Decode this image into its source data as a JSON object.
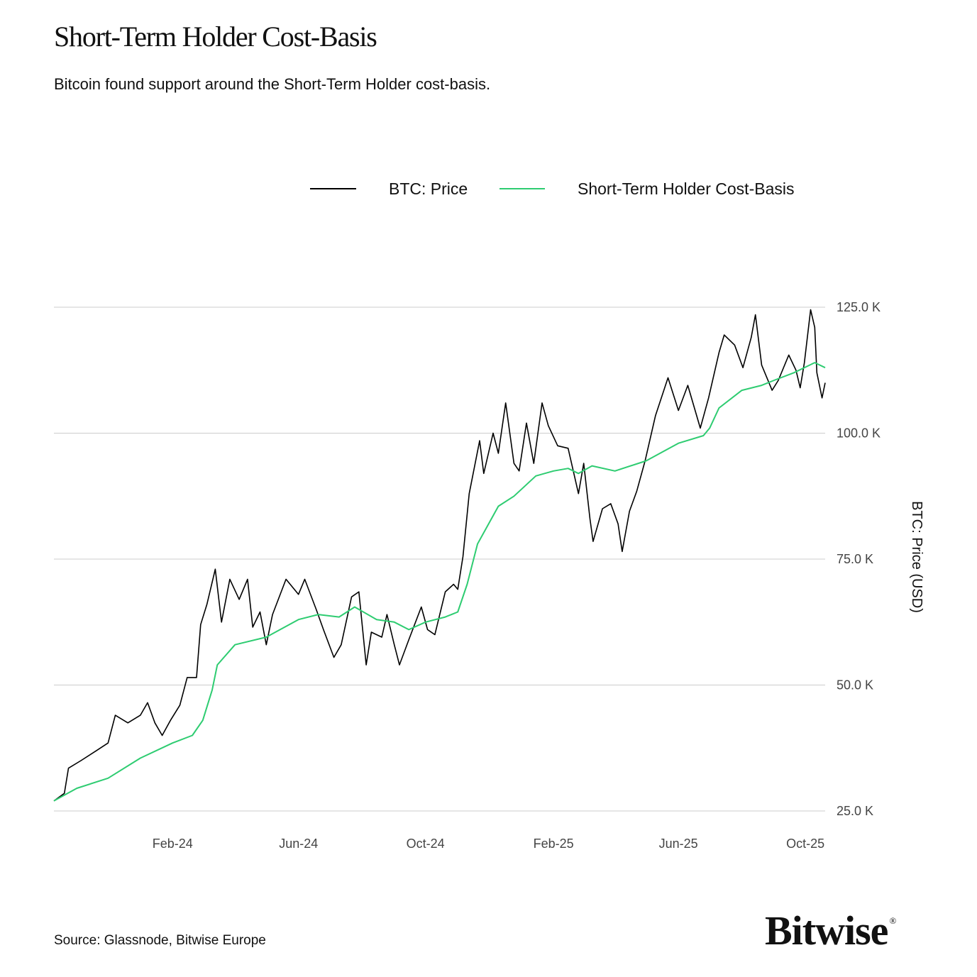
{
  "header": {
    "title": "Short-Term Holder Cost-Basis",
    "subtitle": "Bitcoin found support around the Short-Term Holder cost-basis."
  },
  "footer": {
    "source": "Source: Glassnode, Bitwise Europe",
    "brand": "Bitwise",
    "brand_mark": "®"
  },
  "colors": {
    "price": "#000000",
    "sth": "#2ecc71",
    "grid": "#cccccc",
    "tick_text": "#444444"
  },
  "chart_data": {
    "type": "line",
    "title": "Short-Term Holder Cost-Basis",
    "xlabel": "",
    "ylabel": "BTC: Price (USD)",
    "x_start": "2023-10-10",
    "x_end": "2025-10-20",
    "ylim": [
      25000,
      125000
    ],
    "yticks": [
      {
        "value": 125000,
        "label": "125.0 K"
      },
      {
        "value": 100000,
        "label": "100.0 K"
      },
      {
        "value": 75000,
        "label": "75.0 K"
      },
      {
        "value": 50000,
        "label": "50.0 K"
      },
      {
        "value": 25000,
        "label": "25.0 K"
      }
    ],
    "xticks": [
      {
        "date": "2024-02-01",
        "label": "Feb-24"
      },
      {
        "date": "2024-06-01",
        "label": "Jun-24"
      },
      {
        "date": "2024-10-01",
        "label": "Oct-24"
      },
      {
        "date": "2025-02-01",
        "label": "Feb-25"
      },
      {
        "date": "2025-06-01",
        "label": "Jun-25"
      },
      {
        "date": "2025-10-01",
        "label": "Oct-25"
      }
    ],
    "grid": true,
    "legend_position": "top",
    "series": [
      {
        "name": "BTC: Price",
        "points": [
          [
            "2023-10-10",
            27000
          ],
          [
            "2023-10-20",
            28500
          ],
          [
            "2023-10-24",
            33500
          ],
          [
            "2023-11-05",
            35000
          ],
          [
            "2023-11-20",
            37000
          ],
          [
            "2023-12-01",
            38500
          ],
          [
            "2023-12-08",
            44000
          ],
          [
            "2023-12-20",
            42500
          ],
          [
            "2024-01-01",
            44000
          ],
          [
            "2024-01-08",
            46500
          ],
          [
            "2024-01-15",
            42500
          ],
          [
            "2024-01-22",
            40000
          ],
          [
            "2024-01-30",
            43000
          ],
          [
            "2024-02-08",
            46000
          ],
          [
            "2024-02-15",
            51500
          ],
          [
            "2024-02-24",
            51500
          ],
          [
            "2024-02-28",
            62000
          ],
          [
            "2024-03-05",
            66000
          ],
          [
            "2024-03-13",
            73000
          ],
          [
            "2024-03-19",
            62500
          ],
          [
            "2024-03-27",
            71000
          ],
          [
            "2024-04-05",
            67000
          ],
          [
            "2024-04-13",
            71000
          ],
          [
            "2024-04-18",
            61500
          ],
          [
            "2024-04-25",
            64500
          ],
          [
            "2024-05-01",
            58000
          ],
          [
            "2024-05-07",
            64000
          ],
          [
            "2024-05-20",
            71000
          ],
          [
            "2024-06-01",
            68000
          ],
          [
            "2024-06-07",
            71000
          ],
          [
            "2024-06-18",
            65000
          ],
          [
            "2024-06-25",
            61000
          ],
          [
            "2024-07-05",
            55500
          ],
          [
            "2024-07-12",
            58000
          ],
          [
            "2024-07-22",
            67500
          ],
          [
            "2024-07-29",
            68500
          ],
          [
            "2024-08-05",
            54000
          ],
          [
            "2024-08-10",
            60500
          ],
          [
            "2024-08-20",
            59500
          ],
          [
            "2024-08-25",
            64000
          ],
          [
            "2024-09-01",
            58000
          ],
          [
            "2024-09-06",
            54000
          ],
          [
            "2024-09-15",
            59000
          ],
          [
            "2024-09-27",
            65500
          ],
          [
            "2024-10-03",
            61000
          ],
          [
            "2024-10-10",
            60000
          ],
          [
            "2024-10-20",
            68500
          ],
          [
            "2024-10-28",
            70000
          ],
          [
            "2024-11-01",
            69000
          ],
          [
            "2024-11-06",
            75500
          ],
          [
            "2024-11-12",
            88000
          ],
          [
            "2024-11-22",
            98500
          ],
          [
            "2024-11-26",
            92000
          ],
          [
            "2024-12-05",
            100000
          ],
          [
            "2024-12-10",
            96000
          ],
          [
            "2024-12-17",
            106000
          ],
          [
            "2024-12-25",
            94000
          ],
          [
            "2024-12-30",
            92500
          ],
          [
            "2025-01-06",
            102000
          ],
          [
            "2025-01-13",
            94000
          ],
          [
            "2025-01-21",
            106000
          ],
          [
            "2025-01-27",
            101500
          ],
          [
            "2025-02-05",
            97500
          ],
          [
            "2025-02-15",
            97000
          ],
          [
            "2025-02-25",
            88000
          ],
          [
            "2025-03-02",
            94000
          ],
          [
            "2025-03-08",
            83000
          ],
          [
            "2025-03-11",
            78500
          ],
          [
            "2025-03-20",
            85000
          ],
          [
            "2025-03-28",
            86000
          ],
          [
            "2025-04-04",
            82000
          ],
          [
            "2025-04-08",
            76500
          ],
          [
            "2025-04-15",
            84500
          ],
          [
            "2025-04-22",
            88500
          ],
          [
            "2025-04-30",
            94500
          ],
          [
            "2025-05-10",
            103500
          ],
          [
            "2025-05-22",
            111000
          ],
          [
            "2025-06-01",
            104500
          ],
          [
            "2025-06-10",
            109500
          ],
          [
            "2025-06-22",
            101000
          ],
          [
            "2025-06-30",
            107000
          ],
          [
            "2025-07-10",
            116000
          ],
          [
            "2025-07-15",
            119500
          ],
          [
            "2025-07-25",
            117500
          ],
          [
            "2025-08-02",
            113000
          ],
          [
            "2025-08-10",
            119000
          ],
          [
            "2025-08-14",
            123500
          ],
          [
            "2025-08-20",
            113500
          ],
          [
            "2025-08-30",
            108500
          ],
          [
            "2025-09-05",
            110500
          ],
          [
            "2025-09-15",
            115500
          ],
          [
            "2025-09-22",
            112500
          ],
          [
            "2025-09-26",
            109000
          ],
          [
            "2025-09-30",
            114000
          ],
          [
            "2025-10-06",
            124500
          ],
          [
            "2025-10-10",
            121000
          ],
          [
            "2025-10-12",
            112000
          ],
          [
            "2025-10-17",
            107000
          ],
          [
            "2025-10-20",
            110000
          ]
        ]
      },
      {
        "name": "Short-Term Holder Cost-Basis",
        "points": [
          [
            "2023-10-10",
            27000
          ],
          [
            "2023-11-01",
            29500
          ],
          [
            "2023-12-01",
            31500
          ],
          [
            "2024-01-01",
            35500
          ],
          [
            "2024-02-01",
            38500
          ],
          [
            "2024-02-20",
            40000
          ],
          [
            "2024-03-01",
            43000
          ],
          [
            "2024-03-10",
            49000
          ],
          [
            "2024-03-15",
            54000
          ],
          [
            "2024-04-01",
            58000
          ],
          [
            "2024-05-01",
            59500
          ],
          [
            "2024-06-01",
            63000
          ],
          [
            "2024-06-20",
            64000
          ],
          [
            "2024-07-10",
            63500
          ],
          [
            "2024-07-25",
            65500
          ],
          [
            "2024-08-15",
            63000
          ],
          [
            "2024-09-01",
            62500
          ],
          [
            "2024-09-15",
            61000
          ],
          [
            "2024-10-01",
            62500
          ],
          [
            "2024-10-20",
            63500
          ],
          [
            "2024-11-01",
            64500
          ],
          [
            "2024-11-10",
            70000
          ],
          [
            "2024-11-20",
            78000
          ],
          [
            "2024-12-10",
            85500
          ],
          [
            "2024-12-25",
            87500
          ],
          [
            "2025-01-15",
            91500
          ],
          [
            "2025-02-01",
            92500
          ],
          [
            "2025-02-15",
            93000
          ],
          [
            "2025-02-25",
            92000
          ],
          [
            "2025-03-10",
            93500
          ],
          [
            "2025-04-01",
            92500
          ],
          [
            "2025-05-01",
            94500
          ],
          [
            "2025-06-01",
            98000
          ],
          [
            "2025-06-25",
            99500
          ],
          [
            "2025-07-01",
            101000
          ],
          [
            "2025-07-10",
            105000
          ],
          [
            "2025-08-01",
            108500
          ],
          [
            "2025-08-20",
            109500
          ],
          [
            "2025-09-01",
            110500
          ],
          [
            "2025-09-20",
            112000
          ],
          [
            "2025-10-10",
            114000
          ],
          [
            "2025-10-20",
            113000
          ]
        ]
      }
    ]
  }
}
